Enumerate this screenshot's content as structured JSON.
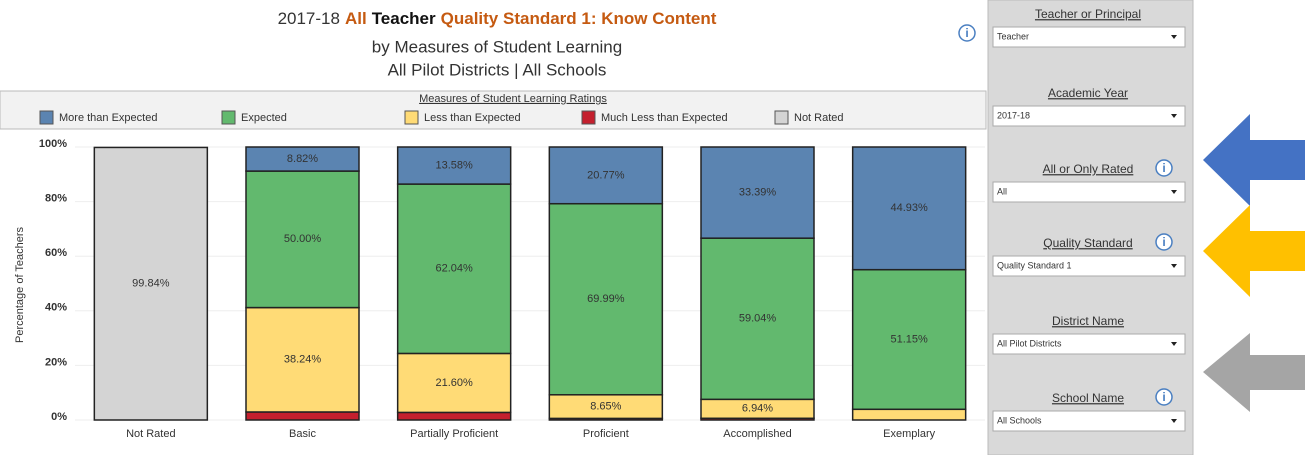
{
  "chart_data": {
    "type": "stacked_bar",
    "title": [
      {
        "text": "2017-18",
        "color": "#333333",
        "bold": false
      },
      {
        "text": "All",
        "color": "#c55a11",
        "bold": true
      },
      {
        "text": "Teacher",
        "color": "#111111",
        "bold": true
      },
      {
        "text": "Quality Standard 1: Know Content",
        "color": "#c55a11",
        "bold": true
      }
    ],
    "subtitle": [
      "by Measures of Student Learning",
      "All Pilot Districts | All Schools"
    ],
    "legend_title": "Measures of Student Learning Ratings",
    "y_label": "Percentage of Teachers",
    "categories": [
      "Not Rated",
      "Basic",
      "Partially Proficient",
      "Proficient",
      "Accomplished",
      "Exemplary"
    ],
    "series": [
      {
        "name": "More than Expected",
        "color": "#5b84b1",
        "values": [
          null,
          8.82,
          13.58,
          20.77,
          33.39,
          44.93
        ],
        "value_labels": [
          null,
          "8.82%",
          "13.58%",
          "20.77%",
          "33.39%",
          "44.93%"
        ]
      },
      {
        "name": "Expected",
        "color": "#62b96e",
        "values": [
          null,
          50.0,
          62.04,
          69.99,
          59.04,
          51.15
        ],
        "value_labels": [
          null,
          "50.00%",
          "62.04%",
          "69.99%",
          "59.04%",
          "51.15%"
        ]
      },
      {
        "name": "Less than Expected",
        "color": "#ffdb76",
        "values": [
          null,
          38.24,
          21.6,
          8.65,
          6.94,
          3.92
        ],
        "value_labels": [
          null,
          "38.24%",
          "21.60%",
          "8.65%",
          "6.94%",
          null
        ]
      },
      {
        "name": "Much Less than Expected",
        "color": "#c4202e",
        "values": [
          null,
          2.94,
          2.78,
          0.59,
          0.63,
          null
        ],
        "value_labels": [
          null,
          null,
          null,
          null,
          null,
          null
        ]
      },
      {
        "name": "Not Rated",
        "color": "#d4d4d4",
        "values": [
          99.84,
          null,
          null,
          null,
          null,
          null
        ],
        "value_labels": [
          "99.84%",
          null,
          null,
          null,
          null,
          null
        ]
      }
    ],
    "ylim": [
      0,
      100
    ],
    "yticks": [
      {
        "value": 0,
        "label": "0%"
      },
      {
        "value": 20,
        "label": "20%"
      },
      {
        "value": 40,
        "label": "40%"
      },
      {
        "value": 60,
        "label": "60%"
      },
      {
        "value": 80,
        "label": "80%"
      },
      {
        "value": 100,
        "label": "100%"
      }
    ],
    "grid": true
  },
  "sidebar": {
    "filters": [
      {
        "label": "Teacher or Principal",
        "value": "Teacher",
        "info": false
      },
      {
        "label": "Academic Year",
        "value": "2017-18",
        "info": false
      },
      {
        "label": "All or Only Rated",
        "value": "All",
        "info": true
      },
      {
        "label": "Quality Standard",
        "value": "Quality Standard 1",
        "info": true
      },
      {
        "label": "District Name",
        "value": "All Pilot Districts",
        "info": false
      },
      {
        "label": "School Name",
        "value": "All Schools",
        "info": true
      }
    ]
  }
}
